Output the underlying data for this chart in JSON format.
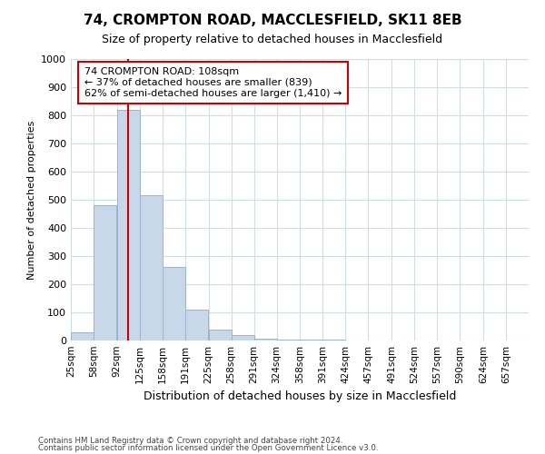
{
  "title": "74, CROMPTON ROAD, MACCLESFIELD, SK11 8EB",
  "subtitle": "Size of property relative to detached houses in Macclesfield",
  "xlabel": "Distribution of detached houses by size in Macclesfield",
  "ylabel": "Number of detached properties",
  "footnote1": "Contains HM Land Registry data © Crown copyright and database right 2024.",
  "footnote2": "Contains public sector information licensed under the Open Government Licence v3.0.",
  "bin_edges": [
    25,
    58,
    92,
    125,
    158,
    191,
    225,
    258,
    291,
    324,
    358,
    391,
    424,
    457,
    491,
    524,
    557,
    590,
    624,
    657,
    690
  ],
  "bar_heights": [
    30,
    480,
    820,
    515,
    260,
    110,
    38,
    20,
    8,
    4,
    2,
    2,
    0,
    0,
    0,
    0,
    0,
    0,
    0,
    0
  ],
  "bar_color": "#c8d8ea",
  "bar_edge_color": "#9ab4cc",
  "property_size": 108,
  "marker_line_color": "#cc0000",
  "annotation_text": "74 CROMPTON ROAD: 108sqm\n← 37% of detached houses are smaller (839)\n62% of semi-detached houses are larger (1,410) →",
  "annotation_box_color": "#ffffff",
  "annotation_box_edge": "#cc0000",
  "ylim": [
    0,
    1000
  ],
  "background_color": "#ffffff",
  "plot_background": "#ffffff",
  "grid_color": "#d0dce8",
  "title_fontsize": 11,
  "subtitle_fontsize": 9,
  "tick_label_fontsize": 7.5,
  "ylabel_fontsize": 8,
  "xlabel_fontsize": 9
}
